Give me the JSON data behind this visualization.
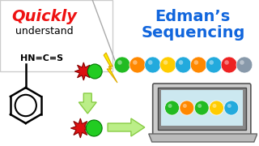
{
  "title_quickly": "Quickly",
  "title_understand": "understand",
  "title_edman": "Edman’s",
  "title_sequencing": "Sequencing",
  "bg_color": "#ffffff",
  "quickly_color": "#ee1111",
  "edman_color": "#1166dd",
  "bead_colors_top": [
    "#22bb22",
    "#ff8800",
    "#22aadd",
    "#ffcc00",
    "#22aadd",
    "#ff8800",
    "#22aadd",
    "#ee2222",
    "#8899aa",
    "#1188cc"
  ],
  "bead_colors_screen": [
    "#22bb22",
    "#ff8800",
    "#22bb22",
    "#ffcc00",
    "#22aadd"
  ],
  "star_color": "#dd1111",
  "green_bead_color": "#22cc22",
  "arrow_fill": "#bbee88",
  "arrow_edge": "#88cc44",
  "lightning_color": "#ffee00",
  "lightning_edge": "#ddaa00"
}
